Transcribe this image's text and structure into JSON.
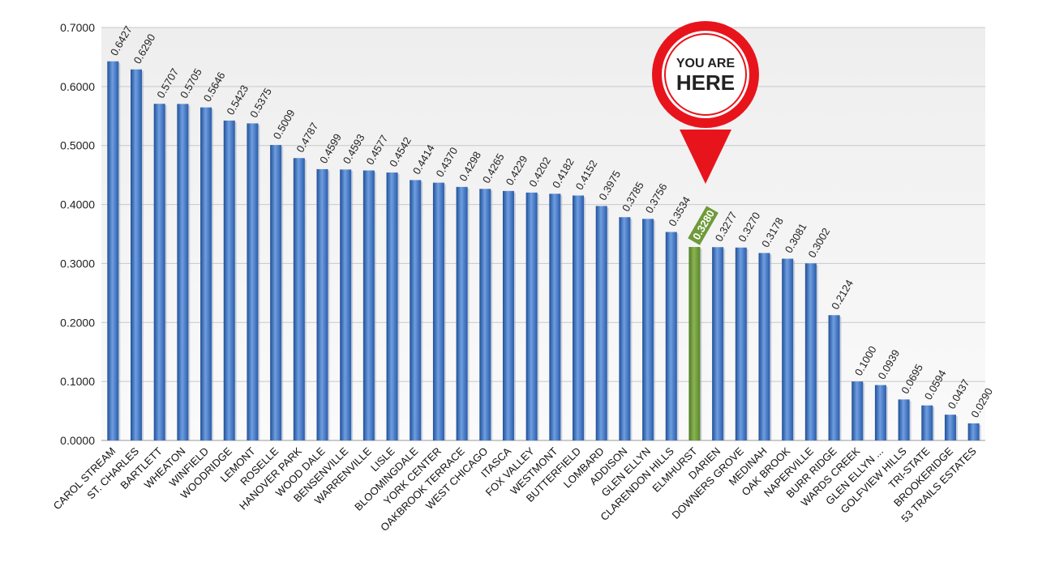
{
  "chart_data": {
    "type": "bar",
    "categories": [
      "CAROL STREAM",
      "ST. CHARLES",
      "BARTLETT",
      "WHEATON",
      "WINFIELD",
      "WOODRIDGE",
      "LEMONT",
      "ROSELLE",
      "HANOVER PARK",
      "WOOD DALE",
      "BENSENVILLE",
      "WARRENVILLE",
      "LISLE",
      "BLOOMINGDALE",
      "YORK CENTER",
      "OAKBROOK TERRACE",
      "WEST CHICAGO",
      "ITASCA",
      "FOX VALLEY",
      "WESTMONT",
      "BUTTERFIELD",
      "LOMBARD",
      "ADDISON",
      "GLEN ELLYN",
      "CLARENDON HILLS",
      "ELMHURST",
      "DARIEN",
      "DOWNERS GROVE",
      "MEDINAH",
      "OAK BROOK",
      "NAPERVILLE",
      "BURR RIDGE",
      "WARDS CREEK",
      "GLEN ELLYN ...",
      "GOLFVIEW HILLS",
      "TRI-STATE",
      "BROOKERIDGE",
      "53 TRAILS ESTATES"
    ],
    "values": [
      0.6427,
      0.629,
      0.5707,
      0.5705,
      0.5646,
      0.5423,
      0.5375,
      0.5009,
      0.4787,
      0.4599,
      0.4593,
      0.4577,
      0.4542,
      0.4414,
      0.437,
      0.4298,
      0.4265,
      0.4229,
      0.4202,
      0.4182,
      0.4152,
      0.3975,
      0.3785,
      0.3756,
      0.3534,
      0.328,
      0.3277,
      0.327,
      0.3178,
      0.3081,
      0.3002,
      0.2124,
      0.1,
      0.0939,
      0.0695,
      0.0594,
      0.0437,
      0.029
    ],
    "value_labels": [
      "0.6427",
      "0.6290",
      "0.5707",
      "0.5705",
      "0.5646",
      "0.5423",
      "0.5375",
      "0.5009",
      "0.4787",
      "0.4599",
      "0.4593",
      "0.4577",
      "0.4542",
      "0.4414",
      "0.4370",
      "0.4298",
      "0.4265",
      "0.4229",
      "0.4202",
      "0.4182",
      "0.4152",
      "0.3975",
      "0.3785",
      "0.3756",
      "0.3534",
      "0.3280",
      "0.3277",
      "0.3270",
      "0.3178",
      "0.3081",
      "0.3002",
      "0.2124",
      "0.1000",
      "0.0939",
      "0.0695",
      "0.0594",
      "0.0437",
      "0.0290"
    ],
    "y_ticks": [
      "0.0000",
      "0.1000",
      "0.2000",
      "0.3000",
      "0.4000",
      "0.5000",
      "0.6000",
      "0.7000"
    ],
    "ylim": [
      0,
      0.7
    ],
    "grid": true,
    "highlight_index": 25,
    "colors": {
      "bar": "#3a72c4",
      "bar_dark": "#1f4f98",
      "bar_light": "#6f9ee0",
      "highlight": "#6f9a3a",
      "highlight_dark": "#4f7a25",
      "pin": "#e8141c",
      "grid": "#c8c8c8"
    }
  },
  "callout": {
    "line1": "YOU ARE",
    "line2": "HERE"
  }
}
